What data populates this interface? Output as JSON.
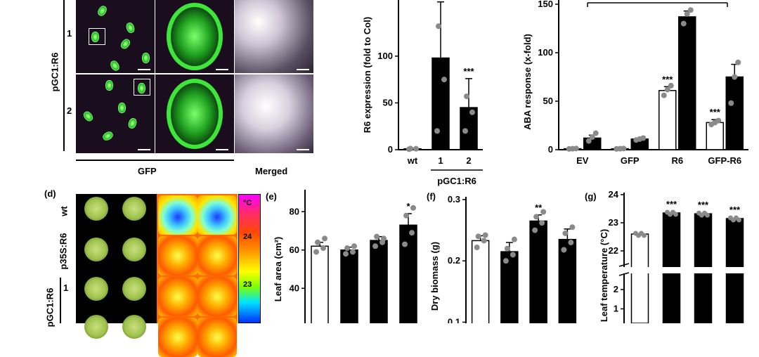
{
  "panel_labels": {
    "d": "(d)",
    "e": "(e)",
    "f": "(f)",
    "g": "(g)"
  },
  "micrograph": {
    "row_group_label": "pGC1:R6",
    "rows": [
      "1",
      "2"
    ],
    "col_labels": {
      "gfp": "GFP",
      "merged": "Merged"
    }
  },
  "plants": {
    "rows": [
      "wt",
      "p35S:R6",
      "1"
    ],
    "group_label": "pGC1:R6",
    "colorbar": {
      "unit": "°C",
      "ticks": [
        "24",
        "23"
      ]
    }
  },
  "colors": {
    "bar_filled": "#000000",
    "bar_open": "#ffffff",
    "dot": "#8a8a8a"
  },
  "chart_data": [
    {
      "id": "r6-expression",
      "type": "bar",
      "ylabel": "R6 expression (fold to Col)",
      "categories": [
        "wt",
        "1",
        "2"
      ],
      "group_label": "pGC1:R6",
      "values": [
        1,
        98,
        45
      ],
      "errors": [
        0.5,
        60,
        31
      ],
      "fills": [
        "open",
        "filled",
        "filled"
      ],
      "significance": [
        "",
        "***",
        "***"
      ],
      "points": [
        [
          0.5,
          1,
          1.2
        ],
        [
          20,
          75,
          132
        ],
        [
          20,
          40,
          57
        ]
      ],
      "yticks": [
        0,
        50,
        100
      ],
      "ylim": [
        0,
        160
      ]
    },
    {
      "id": "aba-response",
      "type": "bar",
      "ylabel": "ABA response (x-fold)",
      "categories": [
        "EV",
        "GFP",
        "R6",
        "GFP-R6"
      ],
      "series": [
        {
          "fill": "open",
          "values": [
            1,
            1,
            61,
            28
          ],
          "errors": [
            0.3,
            0.3,
            4,
            3
          ],
          "significance": [
            "",
            "",
            "***",
            "***"
          ],
          "points": [
            [
              0.8,
              1,
              1.2
            ],
            [
              0.8,
              1,
              1.2
            ],
            [
              56,
              62,
              66
            ],
            [
              26,
              28,
              30
            ]
          ]
        },
        {
          "fill": "filled",
          "values": [
            12,
            11,
            137,
            75
          ],
          "errors": [
            3,
            1,
            6,
            13
          ],
          "significance": [
            "",
            "",
            "",
            ""
          ],
          "points": [
            [
              9,
              13,
              17
            ],
            [
              10,
              11,
              12
            ],
            [
              130,
              140,
              144
            ],
            [
              48,
              75,
              90
            ]
          ]
        }
      ],
      "yticks": [
        0,
        50,
        100,
        150
      ],
      "ylim": [
        0,
        150
      ],
      "bracket_label": "***"
    },
    {
      "id": "leaf-area",
      "type": "bar",
      "ylabel": "Leaf area (cm²)",
      "values": [
        62,
        60,
        65,
        73
      ],
      "errors": [
        2,
        1.5,
        2,
        6
      ],
      "fills": [
        "open",
        "filled",
        "filled",
        "filled"
      ],
      "significance": [
        "",
        "",
        "",
        "*"
      ],
      "points": [
        [
          59,
          61,
          64,
          66
        ],
        [
          58,
          59,
          61,
          62
        ],
        [
          62,
          64,
          67,
          66
        ],
        [
          63,
          69,
          78,
          82
        ]
      ],
      "yticks": [
        20,
        40,
        60,
        80
      ],
      "ylim": [
        10,
        90
      ]
    },
    {
      "id": "dry-biomass",
      "type": "bar",
      "ylabel": "Dry biomass (g)",
      "values": [
        0.233,
        0.215,
        0.265,
        0.235
      ],
      "errors": [
        0.008,
        0.015,
        0.01,
        0.017
      ],
      "fills": [
        "open",
        "filled",
        "filled",
        "filled"
      ],
      "significance": [
        "",
        "",
        "**",
        ""
      ],
      "points": [
        [
          0.222,
          0.233,
          0.24,
          0.242
        ],
        [
          0.2,
          0.21,
          0.22,
          0.235
        ],
        [
          0.25,
          0.262,
          0.272,
          0.28
        ],
        [
          0.218,
          0.23,
          0.245,
          0.255
        ]
      ],
      "yticks": [
        0.1,
        0.2,
        0.3
      ],
      "ylim": [
        0.05,
        0.3
      ]
    },
    {
      "id": "leaf-temperature",
      "type": "bar",
      "ylabel": "Leaf temperature (°C)",
      "values": [
        22.6,
        23.35,
        23.32,
        23.15
      ],
      "errors": [
        0.04,
        0.05,
        0.05,
        0.07
      ],
      "fills": [
        "open",
        "filled",
        "filled",
        "filled"
      ],
      "significance": [
        "",
        "***",
        "***",
        "***"
      ],
      "yticks_upper": [
        22,
        23,
        24
      ],
      "yticks_lower": [
        1,
        2
      ],
      "ylim_upper": [
        21.5,
        24
      ]
    }
  ]
}
